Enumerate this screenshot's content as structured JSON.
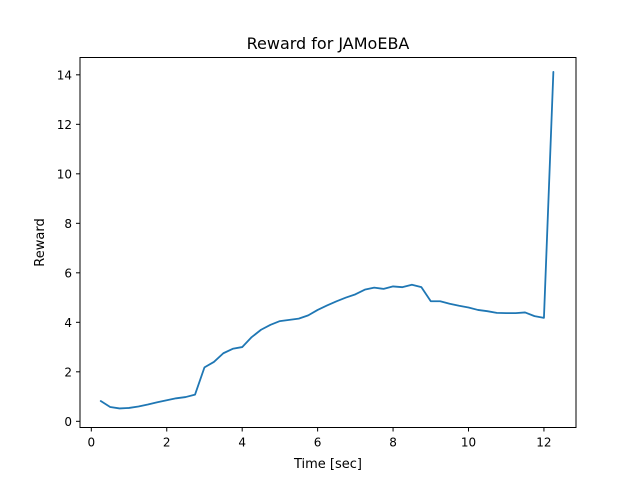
{
  "chart_data": {
    "type": "line",
    "title": "Reward for JAMoEBA",
    "xlabel": "Time [sec]",
    "ylabel": "Reward",
    "xlim": [
      -0.3,
      12.85
    ],
    "ylim": [
      -0.25,
      14.7
    ],
    "xticks": [
      0,
      2,
      4,
      6,
      8,
      10,
      12
    ],
    "yticks": [
      0,
      2,
      4,
      6,
      8,
      10,
      12,
      14
    ],
    "grid": false,
    "color": "#1f77b4",
    "series": [
      {
        "x": [
          0.25,
          0.5,
          0.75,
          1.0,
          1.25,
          1.5,
          1.75,
          2.0,
          2.25,
          2.5,
          2.75,
          3.0,
          3.25,
          3.5,
          3.75,
          4.0,
          4.25,
          4.5,
          4.75,
          5.0,
          5.25,
          5.5,
          5.75,
          6.0,
          6.25,
          6.5,
          6.75,
          7.0,
          7.25,
          7.5,
          7.75,
          8.0,
          8.25,
          8.5,
          8.75,
          9.0,
          9.25,
          9.5,
          9.75,
          10.0,
          10.25,
          10.5,
          10.75,
          11.0,
          11.25,
          11.5,
          11.75,
          12.0,
          12.25
        ],
        "y": [
          0.82,
          0.58,
          0.52,
          0.54,
          0.6,
          0.68,
          0.77,
          0.85,
          0.93,
          0.98,
          1.08,
          2.18,
          2.4,
          2.75,
          2.93,
          3.0,
          3.4,
          3.7,
          3.9,
          4.05,
          4.1,
          4.15,
          4.28,
          4.5,
          4.68,
          4.85,
          5.0,
          5.13,
          5.32,
          5.4,
          5.35,
          5.45,
          5.42,
          5.52,
          5.42,
          4.85,
          4.85,
          4.75,
          4.67,
          4.6,
          4.5,
          4.45,
          4.38,
          4.37,
          4.37,
          4.4,
          4.25,
          4.18,
          14.12
        ]
      }
    ]
  }
}
